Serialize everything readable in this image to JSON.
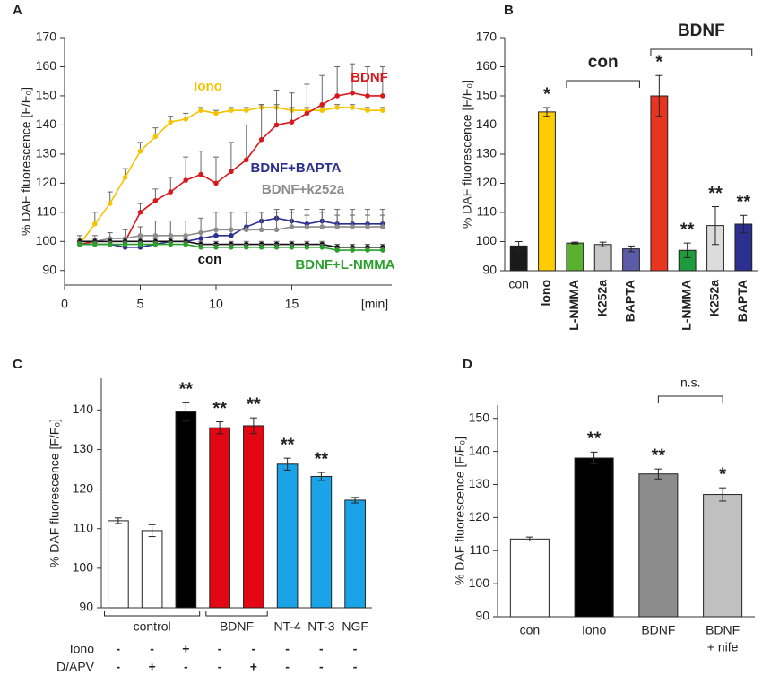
{
  "chart_data": [
    {
      "type": "line",
      "panel": "A",
      "ylabel": "% DAF fluorescence [F/F₀]",
      "xlabel": "[min]",
      "xlim": [
        0,
        21.6
      ],
      "xticks": [
        0,
        5,
        10,
        15
      ],
      "ylim": [
        85,
        170
      ],
      "yticks": [
        90,
        100,
        110,
        120,
        130,
        140,
        150,
        160,
        170
      ],
      "x": [
        1,
        2,
        3,
        4,
        5,
        6,
        7,
        8,
        9,
        10,
        11,
        12,
        13,
        14,
        15,
        16,
        17,
        18,
        19,
        20,
        21
      ],
      "series": [
        {
          "name": "Iono",
          "color": "#f5c400",
          "values": [
            99,
            106,
            113,
            122,
            131,
            136,
            141,
            142,
            145,
            144,
            145,
            145,
            146,
            146,
            145,
            145,
            145,
            146,
            146,
            145,
            145
          ],
          "errors": [
            3,
            4,
            4,
            3,
            3,
            3,
            2,
            2,
            1,
            1,
            1,
            1,
            1,
            1,
            1,
            1,
            1,
            1,
            1,
            1,
            1
          ]
        },
        {
          "name": "BDNF",
          "color": "#d7191c",
          "values": [
            99,
            100,
            100,
            100,
            110,
            114,
            117,
            121,
            123,
            120,
            124,
            128,
            135,
            140,
            141,
            144,
            147,
            150,
            151,
            150,
            150
          ],
          "errors": [
            1,
            1,
            1,
            1,
            3,
            4,
            5,
            8,
            8,
            9,
            10,
            12,
            12,
            12,
            10,
            10,
            10,
            10,
            10,
            10,
            10
          ]
        },
        {
          "name": "BDNF+BAPTA",
          "color": "#2b2f8f",
          "values": [
            99,
            99,
            99,
            98,
            98,
            99,
            100,
            100,
            101,
            102,
            102,
            105,
            107,
            108,
            107,
            106,
            107,
            106,
            106,
            106,
            106
          ],
          "errors": [
            1,
            1,
            1,
            1,
            1,
            1,
            1,
            1,
            2,
            2,
            2,
            2,
            3,
            3,
            3,
            3,
            3,
            3,
            3,
            3,
            3
          ]
        },
        {
          "name": "BDNF+k252a",
          "color": "#8c8c8c",
          "values": [
            100,
            100,
            101,
            101,
            102,
            102,
            102,
            102,
            103,
            104,
            104,
            104,
            104,
            104,
            105,
            105,
            105,
            105,
            105,
            105,
            105
          ],
          "errors": [
            1,
            2,
            2,
            3,
            3,
            5,
            5,
            5,
            5,
            6,
            6,
            6,
            6,
            6,
            6,
            6,
            6,
            6,
            6,
            6,
            6
          ]
        },
        {
          "name": "con",
          "color": "#111111",
          "values": [
            100,
            100,
            100,
            100,
            100,
            100,
            100,
            100,
            99,
            99,
            99,
            99,
            99,
            99,
            99,
            99,
            99,
            98,
            98,
            98,
            98
          ],
          "errors": [
            1,
            1,
            1,
            1,
            1,
            1,
            1,
            1,
            1,
            1,
            1,
            1,
            1,
            1,
            1,
            1,
            1,
            1,
            1,
            1,
            1
          ]
        },
        {
          "name": "BDNF+L-NMMA",
          "color": "#2ca02c",
          "values": [
            99,
            99,
            99,
            99,
            99,
            99,
            99,
            99,
            98,
            98,
            98,
            98,
            98,
            98,
            98,
            98,
            98,
            97,
            97,
            97,
            97
          ],
          "errors": [
            1,
            1,
            1,
            1,
            1,
            1,
            1,
            1,
            1,
            1,
            1,
            1,
            1,
            1,
            1,
            1,
            1,
            1,
            1,
            1,
            1
          ]
        }
      ]
    },
    {
      "type": "bar",
      "panel": "B",
      "ylabel": "% DAF fluorescence [F/F₀]",
      "ylim": [
        90,
        170
      ],
      "yticks": [
        90,
        100,
        110,
        120,
        130,
        140,
        150,
        160,
        170
      ],
      "categories": [
        "con",
        "Iono",
        "L-NMMA",
        "K252a",
        "BAPTA",
        null,
        "L-NMMA",
        "K252a",
        "BAPTA"
      ],
      "values": [
        98.5,
        144.5,
        99.5,
        99,
        97.5,
        150,
        97,
        105.5,
        106
      ],
      "errors": [
        1.5,
        1.5,
        0.3,
        0.8,
        1,
        7,
        2.5,
        6.5,
        3
      ],
      "colors": [
        "#1a1a1a",
        "#ffcc00",
        "#5ab031",
        "#c8c8c8",
        "#5b5ba8",
        "#e8351f",
        "#1f9a3c",
        "#dcdcdc",
        "#2b2f8f"
      ],
      "significance": [
        null,
        "*",
        null,
        null,
        null,
        "*",
        "**",
        "**",
        "**"
      ],
      "groups": [
        "con",
        "BDNF"
      ]
    },
    {
      "type": "bar",
      "panel": "C",
      "ylabel": "% DAF fluorescence [F/F₀]",
      "ylim": [
        90,
        148
      ],
      "yticks": [
        90,
        100,
        110,
        120,
        130,
        140
      ],
      "values": [
        112,
        109.5,
        139.5,
        135.5,
        136,
        126.3,
        123.2,
        117.2
      ],
      "errors": [
        0.7,
        1.5,
        2.3,
        1.5,
        2,
        1.5,
        1,
        0.7
      ],
      "colors": [
        "#ffffff",
        "#ffffff",
        "#000000",
        "#e30613",
        "#e30613",
        "#1aa3e6",
        "#1aa3e6",
        "#1aa3e6"
      ],
      "significance": [
        null,
        null,
        "**",
        "**",
        "**",
        "**",
        "**",
        null
      ],
      "groups": [
        "control",
        "BDNF",
        "NT-4",
        "NT-3",
        "NGF"
      ],
      "rows": [
        {
          "label": "Iono",
          "values": [
            "-",
            "-",
            "+",
            "-",
            "-",
            "-",
            "-",
            "-"
          ]
        },
        {
          "label": "D/APV",
          "values": [
            "-",
            "+",
            "-",
            "-",
            "+",
            "-",
            "-",
            "-"
          ]
        }
      ]
    },
    {
      "type": "bar",
      "panel": "D",
      "ylabel": "% DAF fluorescence [F/F₀]",
      "ylim": [
        90,
        154
      ],
      "yticks": [
        90,
        100,
        110,
        120,
        130,
        140,
        150
      ],
      "categories": [
        [
          "con"
        ],
        [
          "Iono"
        ],
        [
          "BDNF"
        ],
        [
          "BDNF",
          "+ nife"
        ]
      ],
      "values": [
        113.5,
        138,
        133.2,
        127
      ],
      "errors": [
        0.6,
        1.8,
        1.5,
        2
      ],
      "colors": [
        "#ffffff",
        "#000000",
        "#8c8c8c",
        "#c0c0c0"
      ],
      "significance": [
        null,
        "**",
        "**",
        "*"
      ],
      "comparison": "n.s."
    }
  ]
}
